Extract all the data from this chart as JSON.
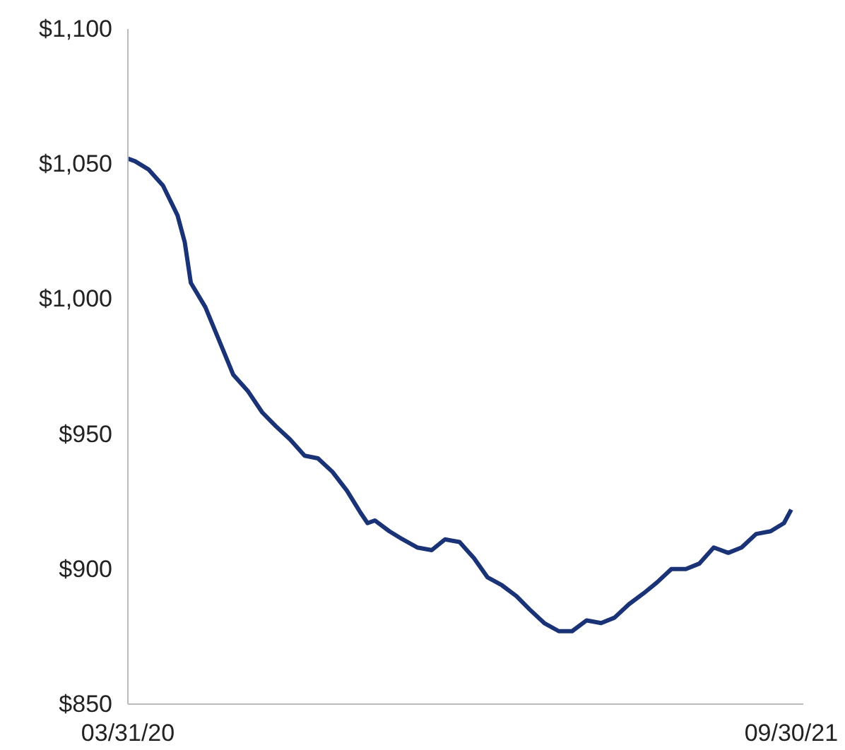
{
  "chart_data": {
    "type": "line",
    "x": [
      "2020-03-31",
      "2020-04-06",
      "2020-04-17",
      "2020-04-29",
      "2020-05-11",
      "2020-05-17",
      "2020-05-22",
      "2020-06-03",
      "2020-06-15",
      "2020-06-26",
      "2020-07-08",
      "2020-07-20",
      "2020-07-31",
      "2020-08-12",
      "2020-08-24",
      "2020-09-04",
      "2020-09-16",
      "2020-09-28",
      "2020-10-09",
      "2020-10-15",
      "2020-10-21",
      "2020-11-02",
      "2020-11-13",
      "2020-11-25",
      "2020-12-07",
      "2020-12-18",
      "2020-12-30",
      "2021-01-11",
      "2021-01-22",
      "2021-02-03",
      "2021-02-15",
      "2021-02-26",
      "2021-03-10",
      "2021-03-22",
      "2021-04-02",
      "2021-04-14",
      "2021-04-26",
      "2021-05-07",
      "2021-05-19",
      "2021-05-31",
      "2021-06-11",
      "2021-06-23",
      "2021-07-05",
      "2021-07-16",
      "2021-07-28",
      "2021-08-09",
      "2021-08-20",
      "2021-09-01",
      "2021-09-13",
      "2021-09-24",
      "2021-09-30"
    ],
    "series": [
      {
        "color": "#1a3276",
        "values": [
          1052,
          1051,
          1048,
          1042,
          1031,
          1021,
          1006,
          997,
          984,
          972,
          966,
          958,
          953,
          948,
          942,
          941,
          936,
          929,
          921,
          917,
          918,
          914,
          911,
          908,
          907,
          911,
          910,
          904,
          897,
          894,
          890,
          885,
          880,
          877,
          877,
          881,
          880,
          882,
          887,
          891,
          895,
          900,
          900,
          902,
          908,
          906,
          908,
          913,
          914,
          917,
          922
        ]
      }
    ],
    "xlim": [
      "2020-03-31",
      "2021-10-10"
    ],
    "xticks": [
      {
        "value": "2020-03-31",
        "label": "03/31/20"
      },
      {
        "value": "2021-09-30",
        "label": "09/30/21"
      }
    ],
    "ylim": [
      850,
      1100
    ],
    "yticks": [
      {
        "value": 850,
        "label": "$850"
      },
      {
        "value": 900,
        "label": "$900"
      },
      {
        "value": 950,
        "label": "$950"
      },
      {
        "value": 1000,
        "label": "$1,000"
      },
      {
        "value": 1050,
        "label": "$1,050"
      },
      {
        "value": 1100,
        "label": "$1,100"
      }
    ],
    "grid": false,
    "line_style": "solid",
    "marker": "none"
  }
}
